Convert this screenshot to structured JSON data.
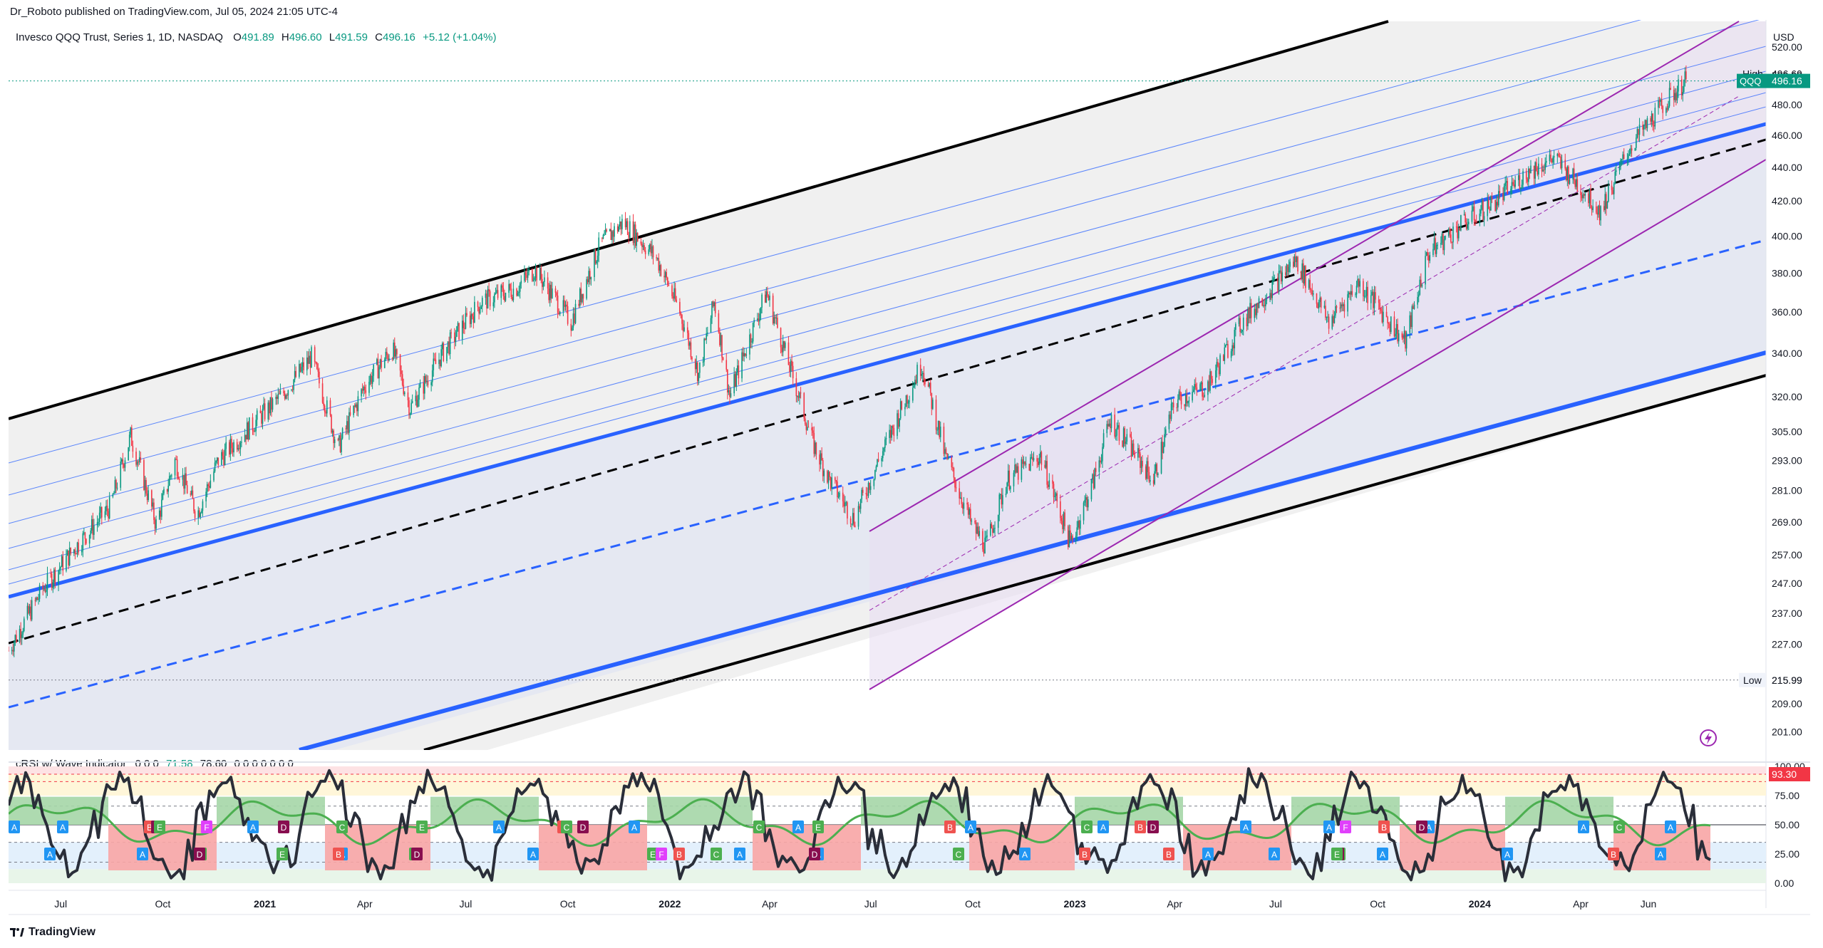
{
  "header": {
    "publisher": "Dr_Roboto published on TradingView.com, Jul 05, 2024 21:05 UTC-4"
  },
  "symbol_bar": {
    "name": "Invesco QQQ Trust, Series 1, 1D, NASDAQ",
    "o_label": "O",
    "o": "491.89",
    "h_label": "H",
    "h": "496.60",
    "l_label": "L",
    "l": "491.59",
    "c_label": "C",
    "c": "496.16",
    "chg": "+5.12 (+1.04%)"
  },
  "currency": "USD",
  "price_axis": {
    "ticks": [
      "520.00",
      "500.00",
      "480.00",
      "460.00",
      "440.00",
      "420.00",
      "400.00",
      "380.00",
      "360.00",
      "340.00",
      "320.00",
      "305.00",
      "293.00",
      "281.00",
      "269.00",
      "257.00",
      "247.00",
      "237.00",
      "227.00",
      "215.99",
      "209.00",
      "201.00"
    ],
    "high_label": "High",
    "high_value": "496.60",
    "last_symbol": "QQQ",
    "last_value": "496.16",
    "low_label": "Low",
    "low_value": "215.99"
  },
  "indicator": {
    "name": "cRSI w/ Wave Indicator",
    "params": "0 0 0",
    "value1": "71.58",
    "value2": "78.60",
    "trailing": "0 0 0 0 0 0 0",
    "axis_ticks": [
      "100.00",
      "75.00",
      "50.00",
      "25.00",
      "0.00"
    ],
    "current_badge": "93.30"
  },
  "time_axis": [
    "Jul",
    "Oct",
    "2021",
    "Apr",
    "Jul",
    "Oct",
    "2022",
    "Apr",
    "Jul",
    "Oct",
    "2023",
    "Apr",
    "Jul",
    "Oct",
    "2024",
    "Apr",
    "Jun"
  ],
  "brand": "TradingView",
  "colors": {
    "up": "#089981",
    "down": "#f23645",
    "channel_blue": "#2962ff",
    "purple": "#9c27b0",
    "black_channel": "#000000",
    "crsi_line": "#2a2e39",
    "wave_green": "#4caf50",
    "wave_red": "#f44336"
  },
  "chart_data": {
    "type": "candlestick",
    "title": "",
    "y_scale": "log",
    "ylim": [
      196,
      540
    ],
    "x_range": [
      "2020-05-15",
      "2024-09-15"
    ],
    "series": [
      {
        "values": [
          [
            "2020-05-15",
            225
          ],
          [
            "2020-06-15",
            245
          ],
          [
            "2020-07-15",
            260
          ],
          [
            "2020-08-15",
            275
          ],
          [
            "2020-09-02",
            303
          ],
          [
            "2020-09-25",
            268
          ],
          [
            "2020-10-12",
            293
          ],
          [
            "2020-11-01",
            272
          ],
          [
            "2020-11-20",
            293
          ],
          [
            "2020-12-15",
            305
          ],
          [
            "2021-01-15",
            320
          ],
          [
            "2021-02-12",
            338
          ],
          [
            "2021-03-08",
            298
          ],
          [
            "2021-04-01",
            325
          ],
          [
            "2021-04-26",
            342
          ],
          [
            "2021-05-12",
            315
          ],
          [
            "2021-06-10",
            340
          ],
          [
            "2021-07-15",
            365
          ],
          [
            "2021-08-15",
            372
          ],
          [
            "2021-09-01",
            382
          ],
          [
            "2021-10-04",
            355
          ],
          [
            "2021-10-30",
            395
          ],
          [
            "2021-11-20",
            408
          ],
          [
            "2021-12-20",
            388
          ],
          [
            "2022-01-10",
            360
          ],
          [
            "2022-01-27",
            330
          ],
          [
            "2022-02-10",
            365
          ],
          [
            "2022-02-24",
            320
          ],
          [
            "2022-03-29",
            370
          ],
          [
            "2022-04-15",
            340
          ],
          [
            "2022-05-10",
            300
          ],
          [
            "2022-05-25",
            285
          ],
          [
            "2022-06-16",
            270
          ],
          [
            "2022-07-20",
            305
          ],
          [
            "2022-08-16",
            335
          ],
          [
            "2022-09-06",
            295
          ],
          [
            "2022-09-30",
            268
          ],
          [
            "2022-10-13",
            260
          ],
          [
            "2022-11-01",
            285
          ],
          [
            "2022-12-01",
            295
          ],
          [
            "2022-12-28",
            261
          ],
          [
            "2023-01-18",
            285
          ],
          [
            "2023-02-02",
            310
          ],
          [
            "2023-03-13",
            285
          ],
          [
            "2023-04-01",
            318
          ],
          [
            "2023-05-01",
            325
          ],
          [
            "2023-06-01",
            355
          ],
          [
            "2023-07-19",
            387
          ],
          [
            "2023-08-18",
            355
          ],
          [
            "2023-09-14",
            375
          ],
          [
            "2023-10-26",
            345
          ],
          [
            "2023-11-15",
            390
          ],
          [
            "2023-12-15",
            406
          ],
          [
            "2024-01-15",
            420
          ],
          [
            "2024-02-15",
            438
          ],
          [
            "2024-03-08",
            446
          ],
          [
            "2024-04-19",
            414
          ],
          [
            "2024-05-15",
            452
          ],
          [
            "2024-06-17",
            482
          ],
          [
            "2024-07-05",
            496.16
          ]
        ]
      }
    ],
    "price_labels": {
      "high": 496.6,
      "last": 496.16,
      "low": 215.99
    },
    "indicator_series": {
      "name": "cRSI w/ Wave Indicator",
      "ylim": [
        0,
        100
      ],
      "levels": [
        93.3,
        75,
        50,
        25,
        0
      ],
      "last_value": 71.58
    }
  }
}
